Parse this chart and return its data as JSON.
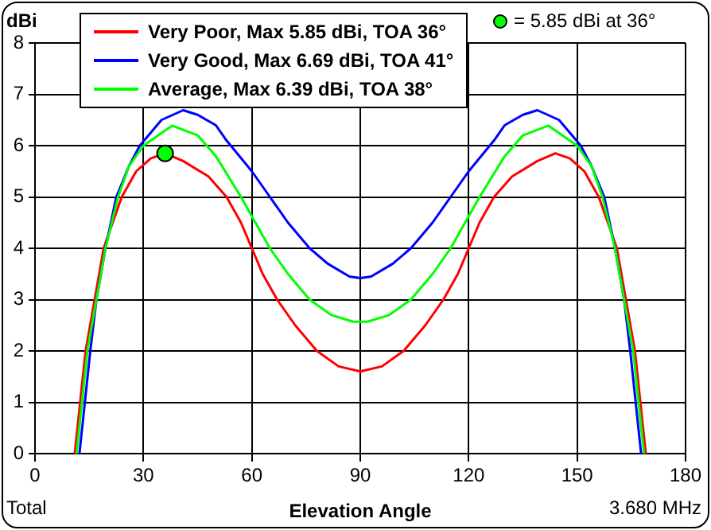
{
  "chart_data": {
    "type": "line",
    "ylabel": "dBi",
    "xlabel": "Elevation Angle",
    "annotations": [
      "Total",
      "3.680 MHz"
    ],
    "xlim": [
      0,
      180
    ],
    "xticks": [
      0,
      30,
      60,
      90,
      120,
      150,
      180
    ],
    "ylim": [
      0,
      8
    ],
    "yticks": [
      0,
      1,
      2,
      3,
      4,
      5,
      6,
      7,
      8
    ],
    "grid": true,
    "legend": "top left",
    "marker": "none",
    "line_style": "solid",
    "series": [
      {
        "name": "Very Poor, Max 5.85 dBi, TOA 36°",
        "color": "#ff0000",
        "x": [
          11,
          12.5,
          14,
          16.5,
          19,
          24,
          28,
          32,
          36,
          41,
          48,
          53,
          57,
          60,
          63,
          67,
          72,
          78,
          84,
          90,
          96,
          102,
          108,
          113,
          117,
          120,
          123,
          127,
          132,
          139,
          144,
          148,
          152,
          156,
          161,
          163.5,
          166,
          167.5,
          169
        ],
        "values": [
          0,
          1,
          2,
          3,
          4,
          5,
          5.5,
          5.75,
          5.85,
          5.7,
          5.4,
          5,
          4.5,
          4,
          3.5,
          3,
          2.5,
          2,
          1.7,
          1.6,
          1.7,
          2,
          2.5,
          3,
          3.5,
          4,
          4.5,
          5,
          5.4,
          5.7,
          5.85,
          5.75,
          5.5,
          5,
          4,
          3,
          2,
          1,
          0
        ]
      },
      {
        "name": "Very Good, Max 6.69 dBi, TOA 41°",
        "color": "#0000ff",
        "x": [
          12.3,
          13.8,
          15.3,
          17,
          19.5,
          22.5,
          26,
          29,
          35,
          41,
          45,
          50,
          53,
          60,
          65,
          70,
          76,
          81,
          87,
          90,
          93,
          99,
          104,
          110,
          115,
          120,
          127,
          130,
          135,
          139,
          145,
          151,
          154,
          157.5,
          160.5,
          163,
          164.7,
          166.2,
          167.7
        ],
        "values": [
          0,
          1,
          2,
          3,
          4,
          5,
          5.6,
          6,
          6.5,
          6.69,
          6.6,
          6.4,
          6.1,
          5.5,
          5,
          4.5,
          4,
          3.7,
          3.45,
          3.42,
          3.45,
          3.7,
          4,
          4.5,
          5,
          5.5,
          6.1,
          6.4,
          6.6,
          6.69,
          6.5,
          6,
          5.6,
          5,
          4,
          3,
          2,
          1,
          0
        ]
      },
      {
        "name": "Average, Max 6.39 dBi, TOA 38°",
        "color": "#00ff00",
        "x": [
          11.5,
          13,
          14.5,
          17,
          19.5,
          23,
          26,
          30,
          38,
          45,
          50,
          57,
          61,
          65,
          70,
          76,
          82,
          88,
          90,
          92,
          98,
          104,
          110,
          115,
          119,
          123,
          130,
          135,
          142,
          150,
          154,
          157,
          160.5,
          163,
          165.5,
          167,
          168.5
        ],
        "values": [
          0,
          1,
          2,
          3,
          4,
          5,
          5.6,
          6,
          6.39,
          6.2,
          5.8,
          5,
          4.5,
          4,
          3.5,
          3,
          2.7,
          2.57,
          2.57,
          2.57,
          2.7,
          3,
          3.5,
          4,
          4.5,
          5,
          5.8,
          6.2,
          6.39,
          6,
          5.6,
          5,
          4,
          3,
          2,
          1,
          0
        ]
      },
      {
        "name": "= 5.85 dBi at 36°",
        "type": "scatter",
        "marker": "circle",
        "color": "#00ff00",
        "x": [
          36
        ],
        "values": [
          5.85
        ]
      }
    ]
  }
}
